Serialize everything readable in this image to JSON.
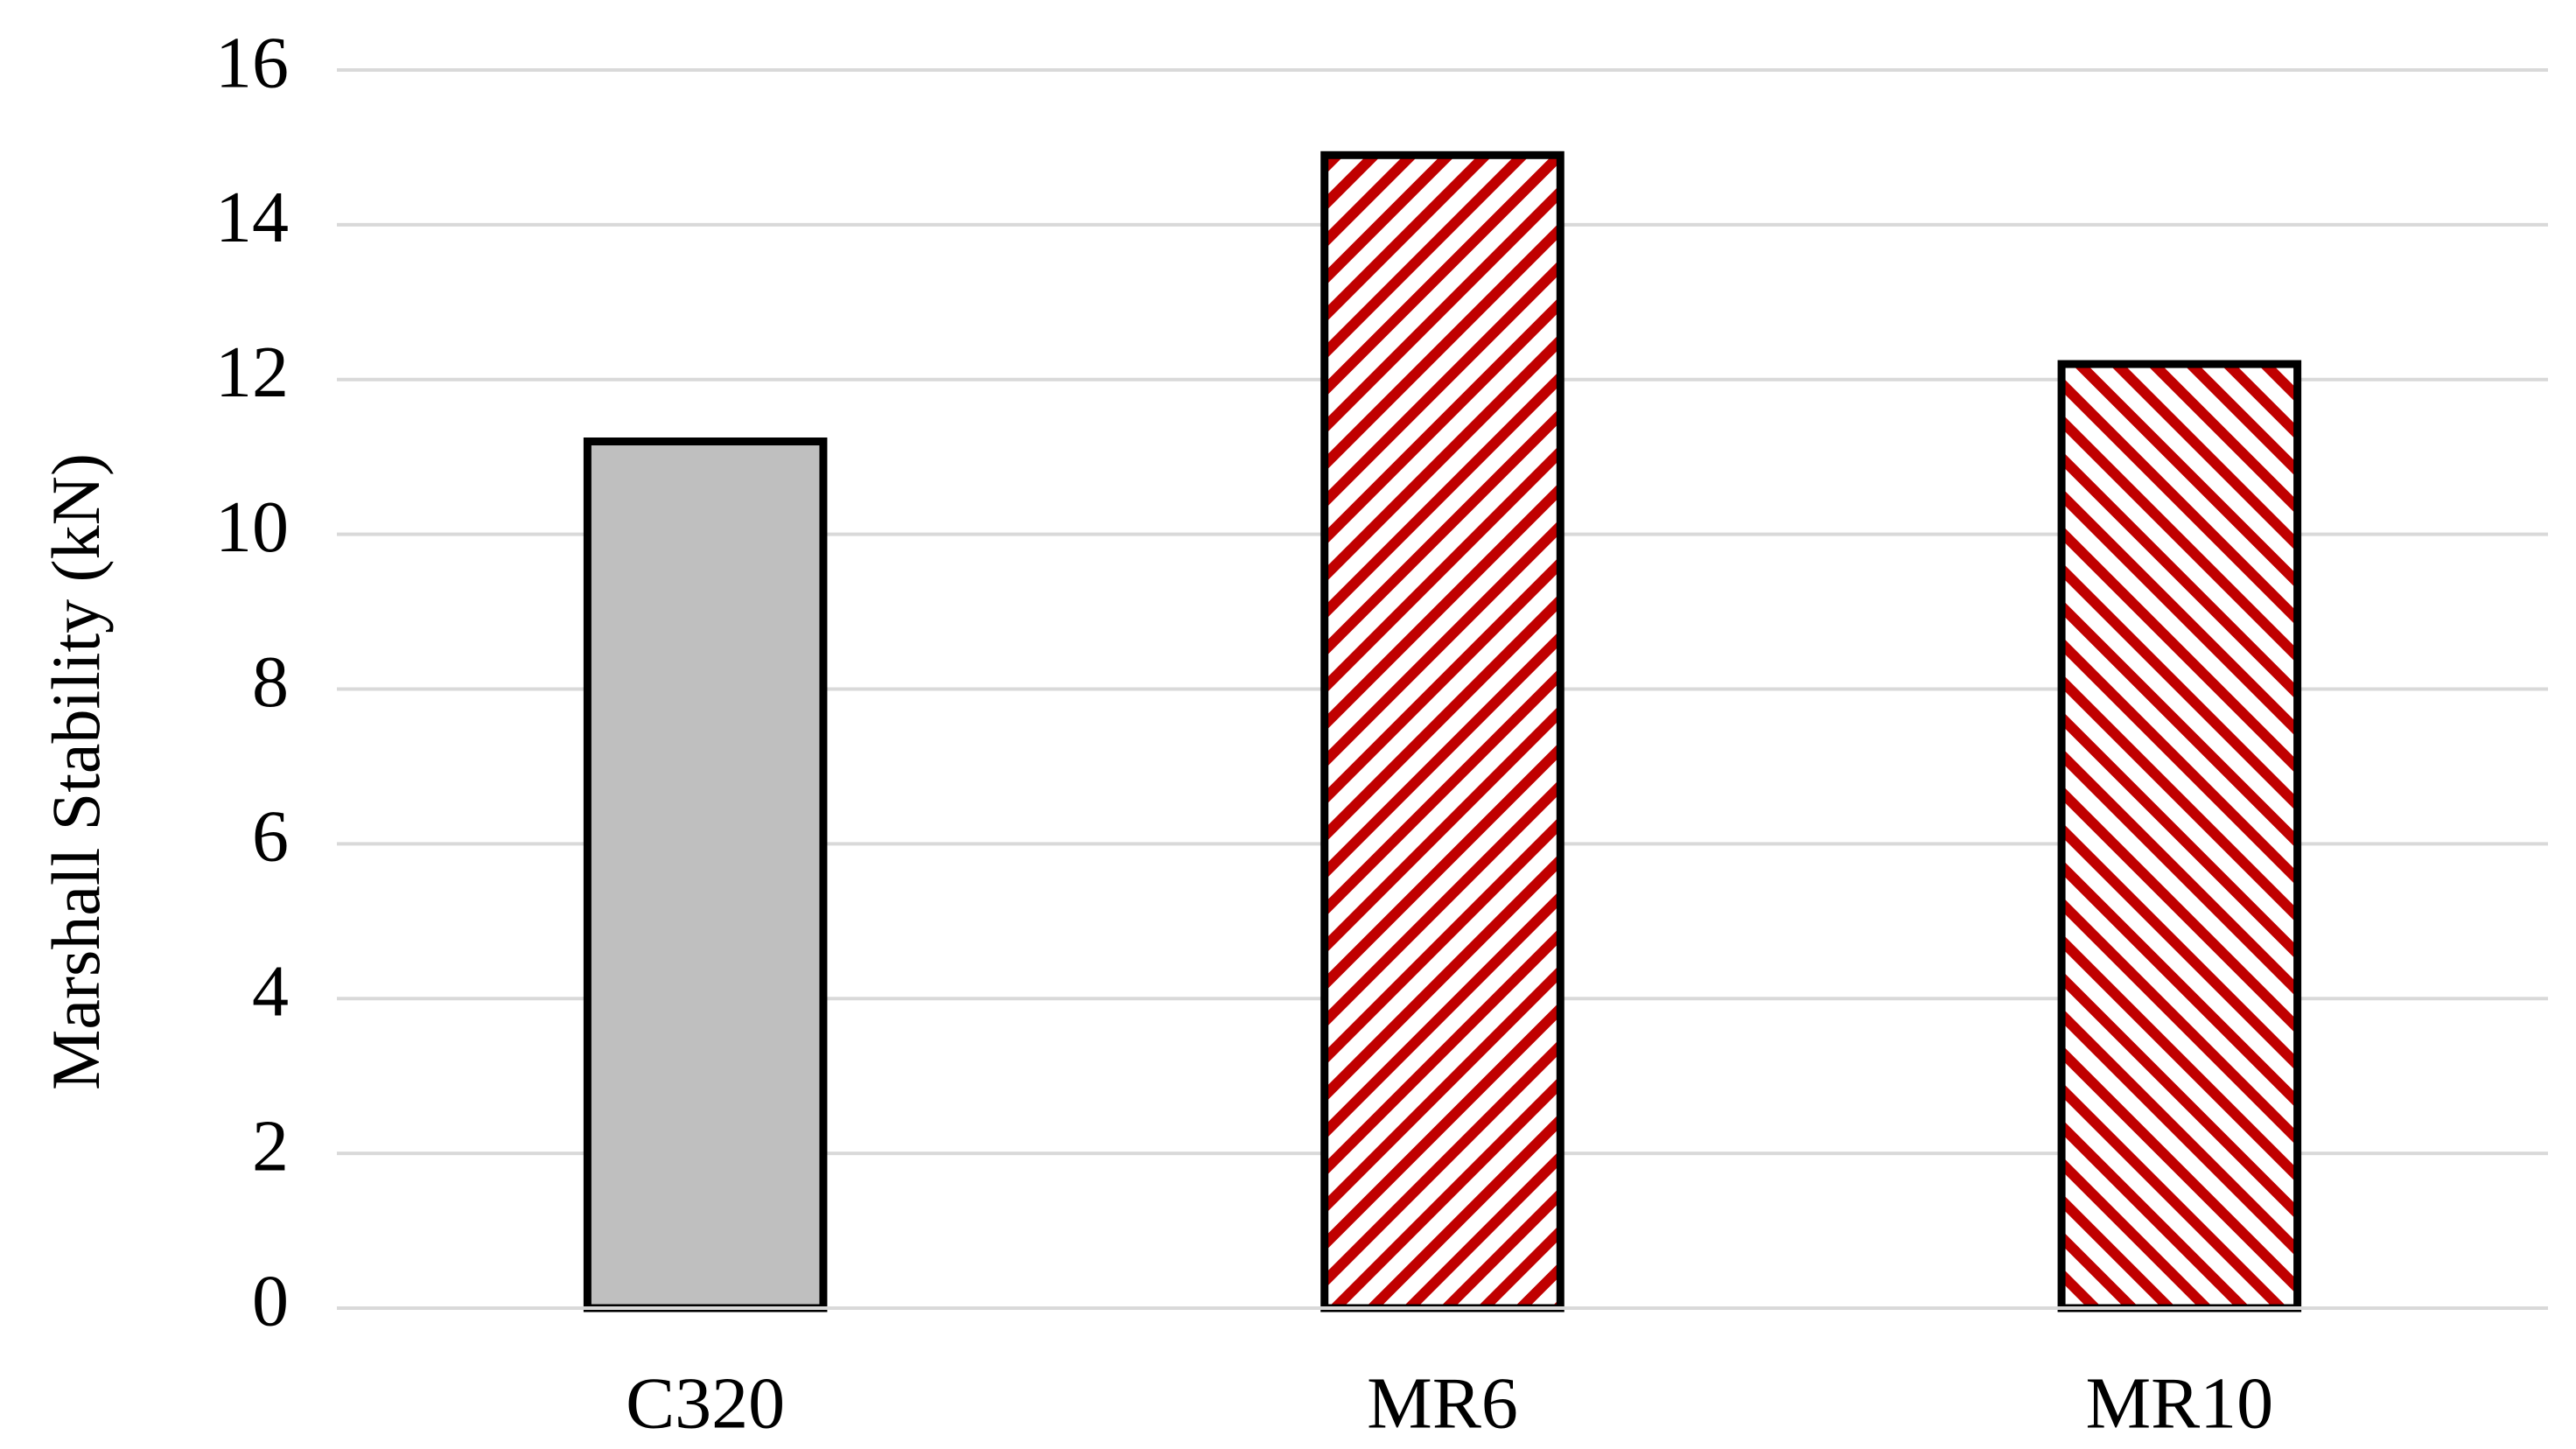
{
  "chart_data": {
    "type": "bar",
    "y_label": "Marshall Stability (kN)",
    "categories": [
      "C320",
      "MR6",
      "MR10"
    ],
    "values": [
      11.2,
      14.9,
      12.2
    ],
    "colors": [
      "#bfbfbf",
      "#c00000",
      "#c00000"
    ],
    "fills": [
      "solid",
      "hatch-down",
      "hatch-up"
    ],
    "ylim": [
      0,
      16
    ],
    "yticks": [
      0,
      2,
      4,
      6,
      8,
      10,
      12,
      14,
      16
    ],
    "grid": true
  }
}
